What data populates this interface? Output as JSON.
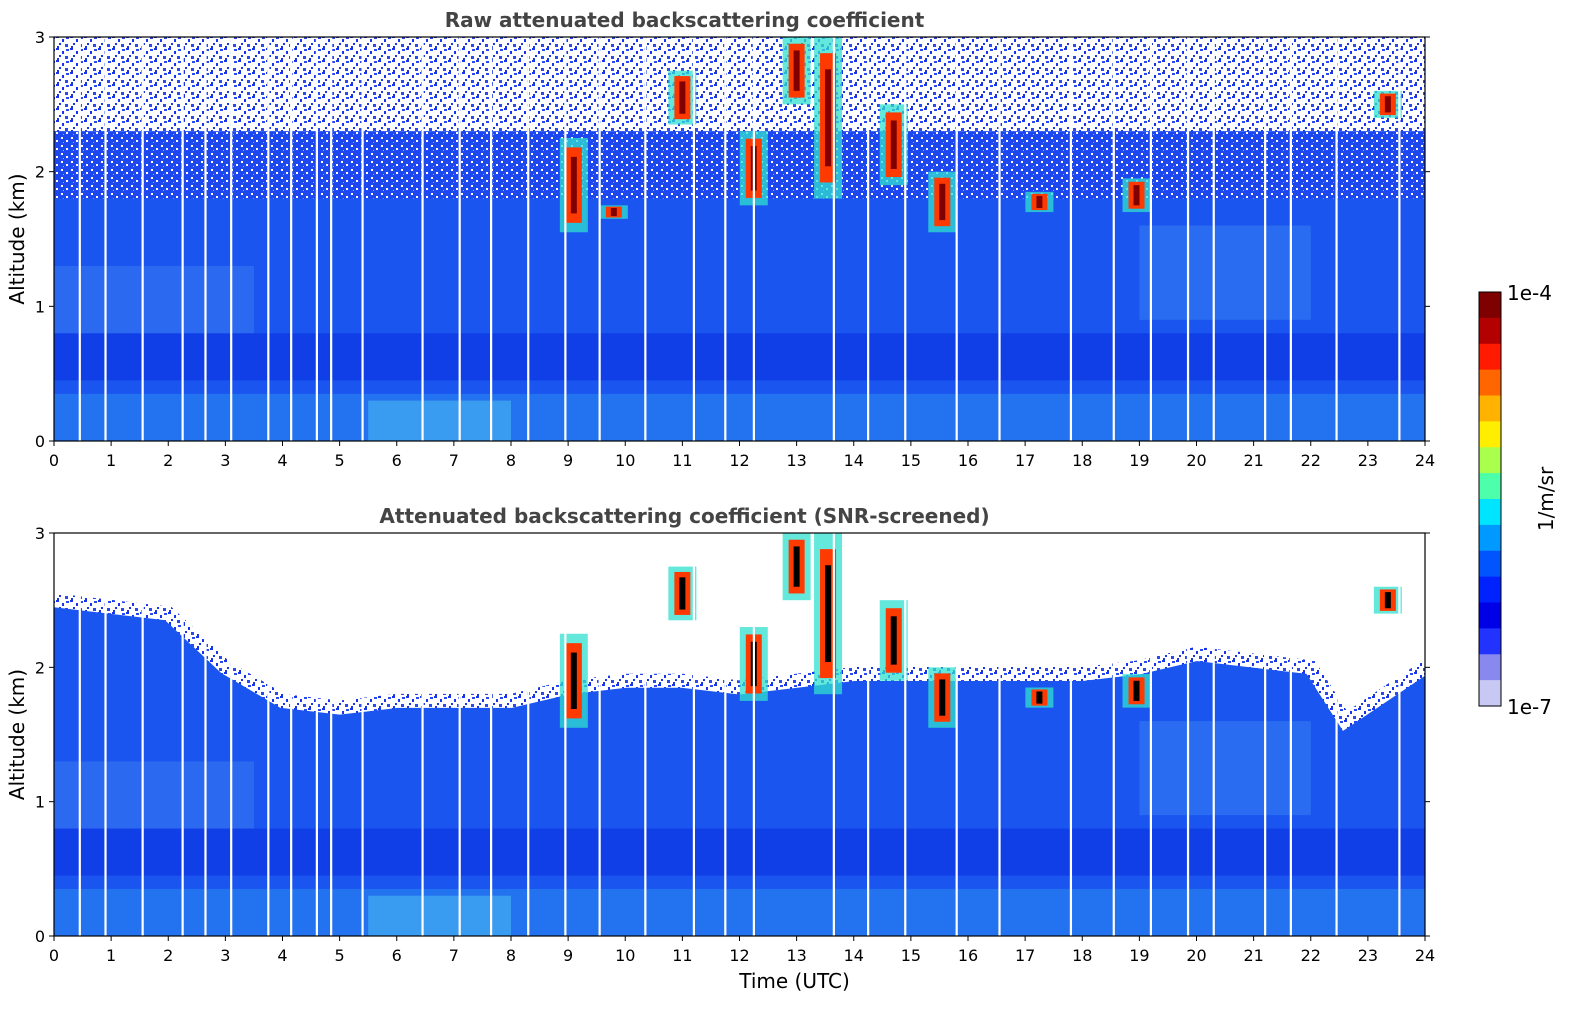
{
  "chart_data": [
    {
      "type": "heatmap",
      "title": "Raw attenuated backscattering coefficient",
      "ylabel": "Altitude (km)",
      "xlabel": "",
      "xlim": [
        0,
        24
      ],
      "ylim": [
        0,
        3
      ],
      "xticks": [
        "0",
        "1",
        "2",
        "3",
        "4",
        "5",
        "6",
        "7",
        "8",
        "9",
        "10",
        "11",
        "12",
        "13",
        "14",
        "15",
        "16",
        "17",
        "18",
        "19",
        "20",
        "21",
        "22",
        "23",
        "24"
      ],
      "yticks": [
        "0",
        "1",
        "2",
        "3"
      ],
      "noise_top_km": 2.0,
      "data_gaps_hours": [
        0.45,
        0.9,
        1.55,
        2.25,
        2.65,
        3.1,
        3.75,
        4.15,
        4.6,
        4.85,
        5.4,
        6.45,
        7.1,
        7.65,
        8.3,
        8.95,
        9.55,
        10.35,
        11.2,
        11.75,
        12.25,
        13.65,
        14.25,
        14.9,
        15.8,
        16.55,
        17.8,
        18.55,
        19.2,
        19.85,
        20.3,
        21.2,
        21.65,
        22.45,
        23.55
      ],
      "clouds": [
        {
          "t": 9.1,
          "base_km": 1.55,
          "top_km": 2.25
        },
        {
          "t": 9.8,
          "base_km": 1.65,
          "top_km": 1.75
        },
        {
          "t": 11.0,
          "base_km": 2.35,
          "top_km": 2.75
        },
        {
          "t": 12.25,
          "base_km": 1.75,
          "top_km": 2.3
        },
        {
          "t": 13.0,
          "base_km": 2.5,
          "top_km": 3.0
        },
        {
          "t": 13.55,
          "base_km": 1.8,
          "top_km": 3.0
        },
        {
          "t": 14.7,
          "base_km": 1.9,
          "top_km": 2.5
        },
        {
          "t": 15.55,
          "base_km": 1.55,
          "top_km": 2.0
        },
        {
          "t": 17.25,
          "base_km": 1.7,
          "top_km": 1.85
        },
        {
          "t": 18.95,
          "base_km": 1.7,
          "top_km": 1.95
        },
        {
          "t": 23.35,
          "base_km": 2.4,
          "top_km": 2.6
        }
      ]
    },
    {
      "type": "heatmap",
      "title": "Attenuated backscattering coefficient (SNR-screened)",
      "ylabel": "Altitude (km)",
      "xlabel": "Time (UTC)",
      "xlim": [
        0,
        24
      ],
      "ylim": [
        0,
        3
      ],
      "xticks": [
        "0",
        "1",
        "2",
        "3",
        "4",
        "5",
        "6",
        "7",
        "8",
        "9",
        "10",
        "11",
        "12",
        "13",
        "14",
        "15",
        "16",
        "17",
        "18",
        "19",
        "20",
        "21",
        "22",
        "23",
        "24"
      ],
      "yticks": [
        "0",
        "1",
        "2",
        "3"
      ],
      "screen_top_km": [
        [
          0,
          2.5
        ],
        [
          2,
          2.4
        ],
        [
          3,
          2.0
        ],
        [
          4,
          1.75
        ],
        [
          5,
          1.7
        ],
        [
          6,
          1.75
        ],
        [
          7,
          1.75
        ],
        [
          8,
          1.75
        ],
        [
          9,
          1.85
        ],
        [
          10,
          1.9
        ],
        [
          11,
          1.9
        ],
        [
          12,
          1.85
        ],
        [
          14,
          1.95
        ],
        [
          16,
          1.95
        ],
        [
          18,
          1.95
        ],
        [
          19,
          2.0
        ],
        [
          20,
          2.1
        ],
        [
          21,
          2.05
        ],
        [
          22,
          2.0
        ],
        [
          22.6,
          1.6
        ],
        [
          23.3,
          1.8
        ],
        [
          24,
          2.0
        ]
      ],
      "data_gaps_hours": [
        0.45,
        0.9,
        1.55,
        2.25,
        2.65,
        3.1,
        3.75,
        4.15,
        4.6,
        4.85,
        5.4,
        6.45,
        7.1,
        7.65,
        8.3,
        8.95,
        9.55,
        10.35,
        11.2,
        11.75,
        12.25,
        13.65,
        14.25,
        14.9,
        15.8,
        16.55,
        17.8,
        18.55,
        19.2,
        19.85,
        20.3,
        21.2,
        21.65,
        22.45,
        23.55
      ],
      "clouds": [
        {
          "t": 9.1,
          "base_km": 1.55,
          "top_km": 2.25
        },
        {
          "t": 11.0,
          "base_km": 2.35,
          "top_km": 2.75
        },
        {
          "t": 12.25,
          "base_km": 1.75,
          "top_km": 2.3
        },
        {
          "t": 13.0,
          "base_km": 2.5,
          "top_km": 3.0
        },
        {
          "t": 13.55,
          "base_km": 1.8,
          "top_km": 3.0
        },
        {
          "t": 14.7,
          "base_km": 1.9,
          "top_km": 2.5
        },
        {
          "t": 15.55,
          "base_km": 1.55,
          "top_km": 2.0
        },
        {
          "t": 17.25,
          "base_km": 1.7,
          "top_km": 1.85
        },
        {
          "t": 18.95,
          "base_km": 1.7,
          "top_km": 1.95
        },
        {
          "t": 23.35,
          "base_km": 2.4,
          "top_km": 2.6
        }
      ]
    }
  ],
  "colorbar": {
    "max_label": "1e-4",
    "min_label": "1e-7",
    "unit_label": "1/m/sr",
    "colors": [
      "#7f0000",
      "#b30000",
      "#ff1a00",
      "#ff6600",
      "#ffb300",
      "#ffee00",
      "#aaff4d",
      "#4dffaa",
      "#00e5ff",
      "#0099ff",
      "#0055ff",
      "#0022ff",
      "#0000e6",
      "#2233ff",
      "#8888ee",
      "#c8c8f5"
    ]
  },
  "colors": {
    "background_blue": "#1a55f0",
    "deep_blue": "#0a2ee0",
    "boundary_layer": "#2b8cf0",
    "noise": "#ffffff"
  }
}
